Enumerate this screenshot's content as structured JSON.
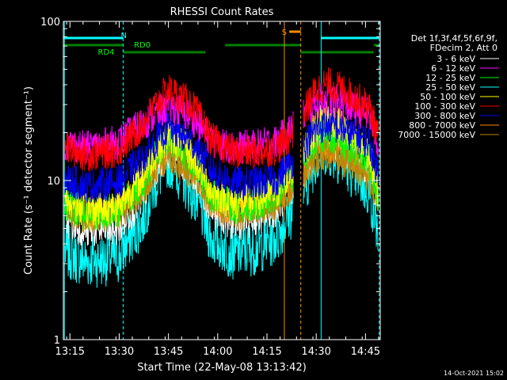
{
  "chart_data": {
    "type": "line",
    "title": "RHESSI Count Rates",
    "xlabel": "Start Time (22-May-08 13:13:42)",
    "ylabel": "Count Rate (s⁻¹ detector segment⁻¹)",
    "yscale": "log",
    "ylim": [
      1,
      100
    ],
    "xlim_minutes": [
      13.0,
      109.5
    ],
    "y_ticks": [
      {
        "value": 1,
        "label": "1"
      },
      {
        "value": 10,
        "label": "10"
      },
      {
        "value": 100,
        "label": "100"
      }
    ],
    "x_ticks": [
      {
        "value": 15,
        "label": "13:15"
      },
      {
        "value": 30,
        "label": "13:30"
      },
      {
        "value": 45,
        "label": "13:45"
      },
      {
        "value": 60,
        "label": "14:00"
      },
      {
        "value": 75,
        "label": "14:15"
      },
      {
        "value": 90,
        "label": "14:30"
      },
      {
        "value": 105,
        "label": "14:45"
      }
    ],
    "legend_header": [
      "Det 1f,3f,4f,5f,6f,9f,",
      "FDecim 2, Att 0"
    ],
    "legend_position": "right",
    "series": [
      {
        "name": "3 - 6 keV",
        "color": "#ffffff",
        "x": [
          13.5,
          20,
          30,
          37,
          45,
          52,
          58,
          65,
          72,
          78,
          81,
          84,
          87,
          90,
          93,
          97,
          101,
          106,
          109
        ],
        "y": [
          5.6,
          4.8,
          5.0,
          7.5,
          15.5,
          11.0,
          6.5,
          5.3,
          5.8,
          6.6,
          8.2,
          9.6,
          12.5,
          16.5,
          18.0,
          16.5,
          14.5,
          12.0,
          6.5
        ]
      },
      {
        "name": "6 - 12 keV",
        "color": "#ff00ff",
        "x": [
          13.5,
          20,
          30,
          37,
          45,
          52,
          58,
          65,
          72,
          78,
          81,
          84,
          87,
          90,
          93,
          97,
          101,
          106,
          109
        ],
        "y": [
          17.0,
          16.0,
          17.5,
          22.5,
          29.5,
          25.0,
          18.0,
          16.0,
          16.5,
          17.5,
          20.0,
          23.0,
          27.0,
          31.0,
          32.5,
          31.0,
          28.5,
          26.0,
          16.5
        ]
      },
      {
        "name": "12 - 25 keV",
        "color": "#00ff00",
        "x": [
          13.5,
          20,
          30,
          37,
          45,
          52,
          58,
          65,
          72,
          78,
          81,
          84,
          87,
          90,
          93,
          97,
          101,
          106,
          109
        ],
        "y": [
          7.0,
          6.2,
          6.5,
          9.5,
          18.5,
          13.5,
          8.0,
          6.8,
          7.2,
          8.0,
          10.0,
          11.5,
          14.5,
          18.0,
          19.5,
          18.0,
          16.0,
          13.5,
          7.5
        ]
      },
      {
        "name": "25 - 50 keV",
        "color": "#00ffff",
        "x": [
          13.5,
          20,
          30,
          37,
          45,
          52,
          58,
          65,
          72,
          78,
          81,
          84,
          87,
          90,
          93,
          97,
          101,
          106,
          109
        ],
        "y": [
          3.6,
          3.1,
          3.3,
          5.5,
          13.5,
          8.5,
          4.3,
          3.5,
          3.8,
          4.4,
          5.8,
          7.0,
          9.5,
          14.0,
          16.0,
          14.0,
          11.5,
          8.5,
          4.4
        ]
      },
      {
        "name": "50 - 100 keV",
        "color": "#ffff00",
        "x": [
          13.5,
          20,
          30,
          37,
          45,
          52,
          58,
          65,
          72,
          78,
          81,
          84,
          87,
          90,
          93,
          97,
          101,
          106,
          109
        ],
        "y": [
          7.5,
          6.5,
          7.0,
          10.5,
          19.5,
          14.5,
          8.5,
          7.2,
          7.6,
          8.4,
          10.5,
          12.5,
          16.0,
          22.0,
          26.0,
          22.5,
          18.0,
          14.5,
          8.0
        ]
      },
      {
        "name": "100 - 300 keV",
        "color": "#ff0000",
        "x": [
          13.5,
          20,
          30,
          37,
          45,
          52,
          58,
          65,
          72,
          78,
          81,
          84,
          87,
          90,
          93,
          97,
          101,
          106,
          109
        ],
        "y": [
          16.0,
          14.5,
          15.5,
          22.0,
          37.0,
          30.0,
          18.0,
          15.0,
          15.0,
          16.0,
          18.0,
          21.5,
          28.5,
          37.0,
          40.5,
          38.0,
          34.0,
          29.0,
          18.0
        ]
      },
      {
        "name": "300 - 800 keV",
        "color": "#0000ff",
        "x": [
          13.5,
          20,
          30,
          37,
          45,
          52,
          58,
          65,
          72,
          78,
          81,
          84,
          87,
          90,
          93,
          97,
          101,
          106,
          109
        ],
        "y": [
          10.2,
          9.2,
          9.8,
          13.5,
          21.5,
          17.5,
          11.5,
          9.6,
          9.6,
          10.2,
          12.0,
          14.0,
          17.0,
          21.0,
          22.5,
          21.5,
          19.5,
          17.5,
          10.5
        ]
      },
      {
        "name": "800 - 7000 keV",
        "color": "#ff8c00",
        "x": [
          13.5,
          20,
          30,
          37,
          45,
          52,
          58,
          65,
          72,
          78,
          81,
          84,
          87,
          90,
          93,
          97,
          101,
          106,
          109
        ],
        "y": [
          7.0,
          6.2,
          6.6,
          9.0,
          15.5,
          12.0,
          7.6,
          6.6,
          7.0,
          7.6,
          9.0,
          10.2,
          12.0,
          15.0,
          16.0,
          15.0,
          13.5,
          11.5,
          7.5
        ]
      },
      {
        "name": "7000 - 15000 keV",
        "color": "#b8860b",
        "x": [
          13.5,
          20,
          30,
          37,
          45,
          52,
          58,
          65,
          72,
          78,
          81,
          84,
          87,
          90,
          93,
          97,
          101,
          106,
          109
        ],
        "y": [
          6.6,
          5.9,
          6.2,
          8.5,
          14.5,
          11.0,
          7.2,
          6.2,
          6.6,
          7.2,
          8.5,
          9.6,
          11.5,
          14.0,
          15.0,
          14.0,
          12.5,
          10.5,
          7.0
        ]
      }
    ],
    "flag_labels": [
      {
        "text": "N",
        "color": "#00ffff"
      },
      {
        "text": "RD0",
        "color": "#00ff00"
      },
      {
        "text": "RD4",
        "color": "#00ff00"
      },
      {
        "text": "S",
        "color": "#ff8c00"
      }
    ],
    "flag_bars": [
      {
        "color": "#00ffff",
        "row": 1,
        "x0": 13.0,
        "x1": 31.2
      },
      {
        "color": "#00ffff",
        "row": 1,
        "x0": 91.5,
        "x1": 109.2
      },
      {
        "color": "#008000",
        "row": 2,
        "x0": 13.0,
        "x1": 31.2
      },
      {
        "color": "#008000",
        "row": 2,
        "x0": 62.3,
        "x1": 85.3
      },
      {
        "color": "#008000",
        "row": 3,
        "x0": 31.2,
        "x1": 56.3
      },
      {
        "color": "#008000",
        "row": 3,
        "x0": 85.3,
        "x1": 107.5
      },
      {
        "color": "#008000",
        "row": 2,
        "x0": 107.5,
        "x1": 109.2
      },
      {
        "color": "#ff8c00",
        "row": 0,
        "x0": 81.8,
        "x1": 85.3
      }
    ],
    "vertical_markers": [
      {
        "color": "#00ffff",
        "x": 13.3,
        "style": "solid"
      },
      {
        "color": "#00ffff",
        "x": 31.2,
        "style": "dashed"
      },
      {
        "color": "#ff8c00",
        "x": 80.3,
        "style": "solid"
      },
      {
        "color": "#ff8c00",
        "x": 85.3,
        "style": "dashed"
      },
      {
        "color": "#00ffff",
        "x": 91.5,
        "style": "solid"
      },
      {
        "color": "#00ffff",
        "x": 109.2,
        "style": "dashed"
      }
    ],
    "data_gap_minutes": [
      83.0,
      86.0
    ]
  },
  "footer": {
    "timestamp": "14-Oct-2021 15:02"
  }
}
